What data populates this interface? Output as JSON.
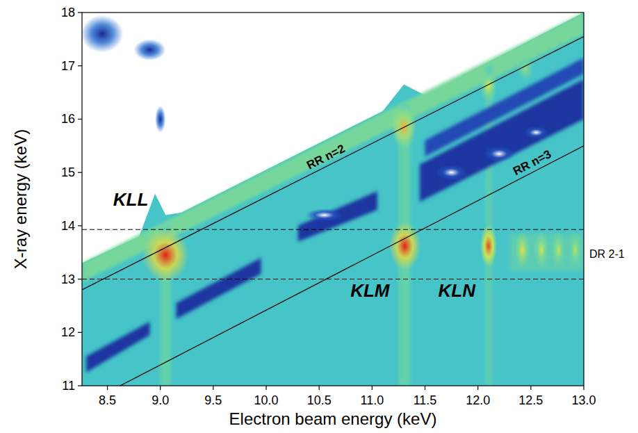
{
  "chart_data": {
    "type": "heatmap",
    "x_label": "Electron beam energy (keV)",
    "y_label": "X-ray energy (keV)",
    "xlim": [
      8.26,
      13.0
    ],
    "ylim": [
      11,
      18
    ],
    "xticks": [
      8.5,
      {
        "value": 9,
        "label": "9.0"
      },
      9.5,
      {
        "value": 10,
        "label": "10.0"
      },
      10.5,
      {
        "value": 11,
        "label": "11.0"
      },
      11.5,
      {
        "value": 12,
        "label": "12.0"
      },
      12.5,
      {
        "value": 13,
        "label": "13.0"
      }
    ],
    "yticks": [
      11,
      12,
      13,
      14,
      15,
      16,
      17,
      18
    ],
    "background": 0.45,
    "upper_edge": {
      "x": [
        8.26,
        8.8,
        8.95,
        9.05,
        9.2,
        11.1,
        11.3,
        11.5,
        13.0
      ],
      "y": [
        13.3,
        13.8,
        14.6,
        14.2,
        14.25,
        16.15,
        16.65,
        16.45,
        18.0
      ]
    },
    "streaks": [
      {
        "x": [
          8.26,
          13.0,
          13.0,
          8.26
        ],
        "y": [
          13.3,
          18.0,
          17.6,
          12.95
        ],
        "intensity": 0.56
      },
      {
        "x": [
          9.0,
          9.1,
          9.1,
          9.0
        ],
        "y": [
          11,
          11,
          14.0,
          14.0
        ],
        "intensity": 0.52
      },
      {
        "x": [
          11.25,
          11.36,
          11.36,
          11.25
        ],
        "y": [
          11,
          11,
          16.3,
          16.3
        ],
        "intensity": 0.52
      },
      {
        "x": [
          12.07,
          12.14,
          12.14,
          12.07
        ],
        "y": [
          11,
          11,
          17.0,
          17.0
        ],
        "intensity": 0.5
      },
      {
        "x": [
          12.3,
          13.0,
          13.0,
          12.3
        ],
        "y": [
          13.15,
          13.15,
          13.85,
          13.85
        ],
        "intensity": 0.5
      },
      {
        "x": [
          8.3,
          8.9,
          8.9,
          8.3
        ],
        "y": [
          11.55,
          12.2,
          11.95,
          11.25
        ],
        "intensity": 0.15
      },
      {
        "x": [
          9.15,
          9.95,
          9.95,
          9.15
        ],
        "y": [
          12.55,
          13.4,
          13.1,
          12.25
        ],
        "intensity": 0.15
      },
      {
        "x": [
          10.3,
          11.05,
          11.05,
          10.3
        ],
        "y": [
          14.0,
          14.65,
          14.3,
          13.7
        ],
        "intensity": 0.15
      },
      {
        "x": [
          11.45,
          13.0,
          13.0,
          11.45
        ],
        "y": [
          15.15,
          16.75,
          16.0,
          14.45
        ],
        "intensity": 0.15
      },
      {
        "x": [
          11.5,
          13.0,
          13.0,
          11.5
        ],
        "y": [
          15.6,
          17.15,
          16.85,
          15.3
        ],
        "intensity": 0.2
      }
    ],
    "spots": [
      {
        "x": 9.05,
        "y": 13.45,
        "rx": 0.22,
        "ry": 0.5,
        "intensity": 1.0
      },
      {
        "x": 11.31,
        "y": 13.62,
        "rx": 0.15,
        "ry": 0.45,
        "intensity": 1.0
      },
      {
        "x": 12.1,
        "y": 13.62,
        "rx": 0.08,
        "ry": 0.4,
        "intensity": 0.95
      },
      {
        "x": 12.42,
        "y": 13.55,
        "rx": 0.07,
        "ry": 0.35,
        "intensity": 0.72
      },
      {
        "x": 12.6,
        "y": 13.55,
        "rx": 0.07,
        "ry": 0.35,
        "intensity": 0.68
      },
      {
        "x": 12.76,
        "y": 13.55,
        "rx": 0.07,
        "ry": 0.35,
        "intensity": 0.66
      },
      {
        "x": 12.92,
        "y": 13.55,
        "rx": 0.07,
        "ry": 0.35,
        "intensity": 0.64
      },
      {
        "x": 11.3,
        "y": 15.85,
        "rx": 0.12,
        "ry": 0.4,
        "intensity": 0.8
      },
      {
        "x": 12.1,
        "y": 16.62,
        "rx": 0.08,
        "ry": 0.3,
        "intensity": 0.7
      },
      {
        "x": 12.45,
        "y": 16.95,
        "rx": 0.08,
        "ry": 0.25,
        "intensity": 0.6
      },
      {
        "x": 10.55,
        "y": 14.2,
        "rx": 0.18,
        "ry": 0.12,
        "intensity": 0
      },
      {
        "x": 11.75,
        "y": 15.0,
        "rx": 0.15,
        "ry": 0.15,
        "intensity": 0
      },
      {
        "x": 12.2,
        "y": 15.35,
        "rx": 0.15,
        "ry": 0.15,
        "intensity": 0
      },
      {
        "x": 12.55,
        "y": 15.75,
        "rx": 0.12,
        "ry": 0.12,
        "intensity": 0
      },
      {
        "x": 8.45,
        "y": 17.6,
        "rx": 0.2,
        "ry": 0.35,
        "intensity": 0.12
      },
      {
        "x": 8.9,
        "y": 17.3,
        "rx": 0.15,
        "ry": 0.2,
        "intensity": 0.12
      },
      {
        "x": 9.0,
        "y": 16.0,
        "rx": 0.05,
        "ry": 0.25,
        "intensity": 0.12
      }
    ],
    "lines": [
      {
        "label": "RR n=2",
        "x": [
          8.26,
          13.0
        ],
        "y": [
          12.8,
          17.55
        ],
        "label_x": 10.6,
        "color": "#000000",
        "line_style": "solid"
      },
      {
        "label": "RR n=3",
        "x": [
          8.26,
          13.0
        ],
        "y": [
          10.63,
          15.5
        ],
        "label_x": 12.55,
        "color": "#000000",
        "line_style": "solid"
      }
    ],
    "hlines": [
      {
        "y": 13.0,
        "color": "#000000",
        "line_style": "dashed"
      },
      {
        "y": 13.93,
        "color": "#000000",
        "line_style": "dashed"
      }
    ],
    "annotations": [
      {
        "text": "KLL",
        "x": 8.72,
        "y": 14.5
      },
      {
        "text": "KLM",
        "x": 10.98,
        "y": 12.78
      },
      {
        "text": "KLN",
        "x": 11.8,
        "y": 12.78
      },
      {
        "text": "DR 2-1",
        "x": 13.0,
        "y": 13.47
      }
    ]
  }
}
